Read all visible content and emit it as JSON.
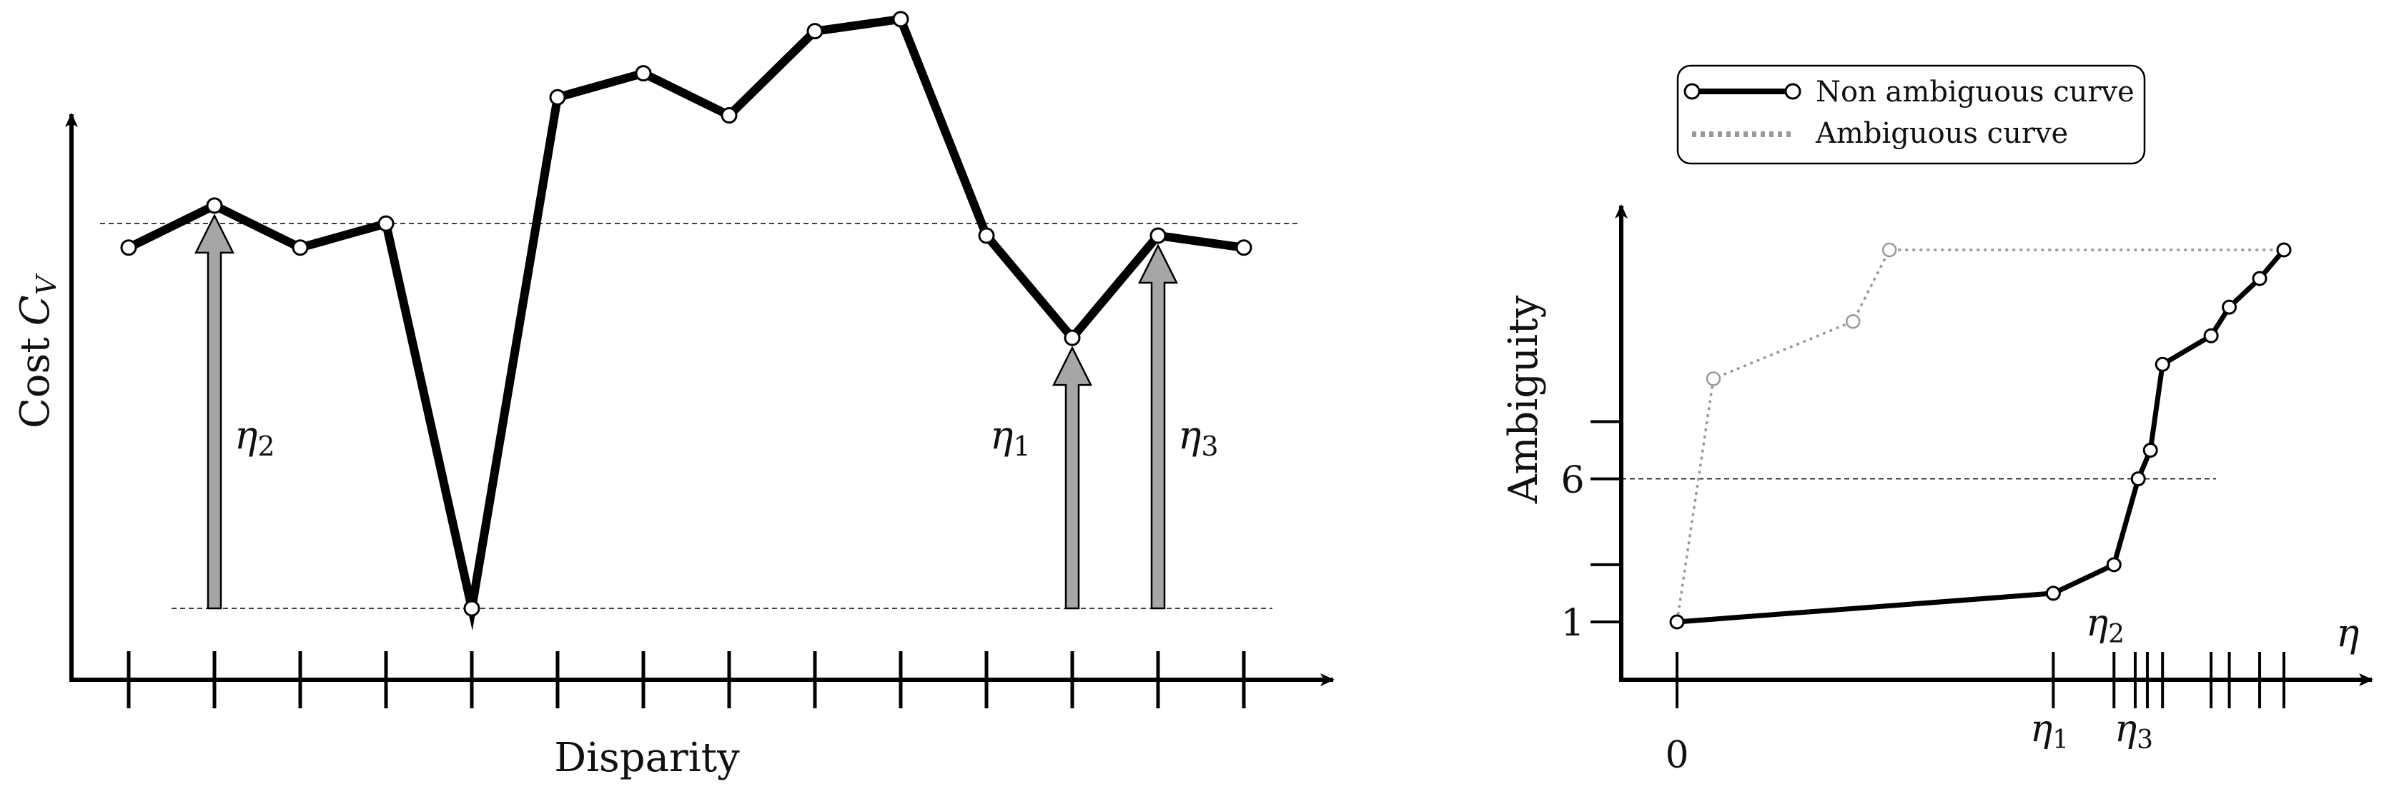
{
  "left_panel": {
    "y_axis_label": "Cost",
    "y_axis_symbol": "C",
    "y_axis_subscript": "V",
    "x_axis_label": "Disparity",
    "tick_count": 14,
    "cost_points": [
      0.4,
      0.33,
      0.4,
      0.36,
      1.0,
      0.15,
      0.11,
      0.18,
      0.04,
      0.02,
      0.38,
      0.55,
      0.38,
      0.4
    ],
    "threshold_lines": [
      0.36,
      1.0
    ],
    "arrows": [
      {
        "label_symbol": "η",
        "label_sub": "2",
        "disparity_index": 1,
        "label_side": "right"
      },
      {
        "label_symbol": "η",
        "label_sub": "1",
        "disparity_index": 11,
        "label_side": "left"
      },
      {
        "label_symbol": "η",
        "label_sub": "3",
        "disparity_index": 12,
        "label_side": "right"
      }
    ],
    "colors": {
      "curve": "#000000",
      "arrow_fill": "#a6a6a6",
      "marker_fill": "#ffffff"
    }
  },
  "right_panel": {
    "legend": {
      "items": [
        {
          "label": "Non ambiguous curve",
          "style": "solid"
        },
        {
          "label": "Ambiguous curve",
          "style": "dotted"
        }
      ]
    },
    "y_axis_label": "Ambiguity",
    "x_axis_symbol": "η",
    "y_tick_labels": [
      "1",
      "6"
    ],
    "x_tick_labels": {
      "zero": "0",
      "eta1_symbol": "η",
      "eta1_sub": "1",
      "eta2_symbol": "η",
      "eta2_sub": "2",
      "eta3_symbol": "η",
      "eta3_sub": "3"
    },
    "non_ambiguous_curve": [
      [
        0.0,
        1.0
      ],
      [
        0.62,
        2.0
      ],
      [
        0.72,
        3.0
      ],
      [
        0.76,
        6.0
      ],
      [
        0.78,
        7.0
      ],
      [
        0.8,
        10.0
      ],
      [
        0.88,
        11.0
      ],
      [
        0.91,
        12.0
      ],
      [
        0.96,
        13.0
      ],
      [
        1.0,
        14.0
      ]
    ],
    "ambiguous_curve": [
      [
        0.0,
        1.0
      ],
      [
        0.06,
        9.5
      ],
      [
        0.29,
        11.5
      ],
      [
        0.35,
        14.0
      ],
      [
        1.0,
        14.0
      ]
    ],
    "dashed_level": 6.0,
    "colors": {
      "curve": "#000000",
      "ambiguous": "#999999"
    }
  }
}
